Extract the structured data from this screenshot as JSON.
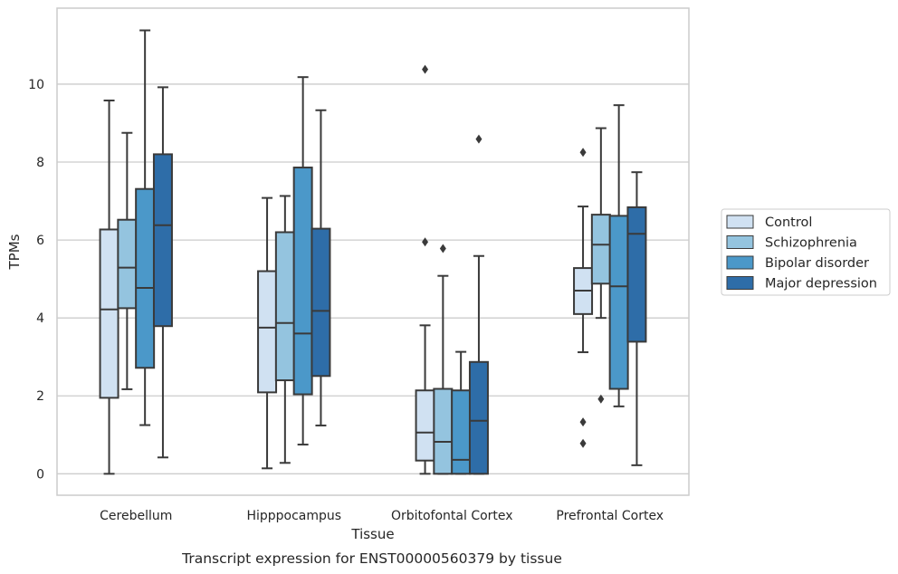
{
  "chart_data": {
    "type": "box",
    "xlabel": "Tissue",
    "ylabel": "TPMs",
    "caption": "Transcript expression for ENST00000560379 by tissue",
    "ylim": [
      -0.55,
      11.95
    ],
    "yticks": [
      0,
      2,
      4,
      6,
      8,
      10
    ],
    "grid": "horizontal",
    "legend_position": "right",
    "categories": [
      "Cerebellum",
      "Hipppocampus",
      "Orbitofontal Cortex",
      "Prefrontal Cortex"
    ],
    "series": [
      {
        "name": "Control",
        "color": "#d0e1f2",
        "boxes": [
          {
            "whislo": 0.0,
            "q1": 1.95,
            "med": 4.22,
            "q3": 6.27,
            "whishi": 9.58,
            "fliers": []
          },
          {
            "whislo": 0.14,
            "q1": 2.09,
            "med": 3.75,
            "q3": 5.2,
            "whishi": 7.08,
            "fliers": []
          },
          {
            "whislo": 0.0,
            "q1": 0.34,
            "med": 1.06,
            "q3": 2.14,
            "whishi": 3.81,
            "fliers": [
              5.95,
              10.38
            ]
          },
          {
            "whislo": 3.12,
            "q1": 4.1,
            "med": 4.7,
            "q3": 5.28,
            "whishi": 6.86,
            "fliers": [
              0.78,
              1.33,
              8.25
            ]
          }
        ]
      },
      {
        "name": "Schizophrenia",
        "color": "#94c4df",
        "boxes": [
          {
            "whislo": 2.17,
            "q1": 4.25,
            "med": 5.29,
            "q3": 6.52,
            "whishi": 8.75,
            "fliers": []
          },
          {
            "whislo": 0.28,
            "q1": 2.4,
            "med": 3.87,
            "q3": 6.2,
            "whishi": 7.13,
            "fliers": []
          },
          {
            "whislo": 0.0,
            "q1": 0.0,
            "med": 0.82,
            "q3": 2.18,
            "whishi": 5.08,
            "fliers": [
              5.78
            ]
          },
          {
            "whislo": 4.0,
            "q1": 4.88,
            "med": 5.88,
            "q3": 6.65,
            "whishi": 8.87,
            "fliers": [
              1.92
            ]
          }
        ]
      },
      {
        "name": "Bipolar disorder",
        "color": "#4b98c9",
        "boxes": [
          {
            "whislo": 1.25,
            "q1": 2.72,
            "med": 4.77,
            "q3": 7.31,
            "whishi": 11.38,
            "fliers": []
          },
          {
            "whislo": 0.75,
            "q1": 2.04,
            "med": 3.6,
            "q3": 7.86,
            "whishi": 10.18,
            "fliers": []
          },
          {
            "whislo": 0.0,
            "q1": 0.0,
            "med": 0.36,
            "q3": 2.14,
            "whishi": 3.13,
            "fliers": []
          },
          {
            "whislo": 1.73,
            "q1": 2.18,
            "med": 4.81,
            "q3": 6.62,
            "whishi": 9.46,
            "fliers": []
          }
        ]
      },
      {
        "name": "Major depression",
        "color": "#2e6da8",
        "boxes": [
          {
            "whislo": 0.42,
            "q1": 3.79,
            "med": 6.38,
            "q3": 8.2,
            "whishi": 9.92,
            "fliers": []
          },
          {
            "whislo": 1.24,
            "q1": 2.51,
            "med": 4.18,
            "q3": 6.29,
            "whishi": 9.33,
            "fliers": []
          },
          {
            "whislo": 0.0,
            "q1": 0.0,
            "med": 1.36,
            "q3": 2.87,
            "whishi": 5.59,
            "fliers": [
              8.59
            ]
          },
          {
            "whislo": 0.22,
            "q1": 3.39,
            "med": 6.16,
            "q3": 6.84,
            "whishi": 7.74,
            "fliers": []
          }
        ]
      }
    ]
  }
}
